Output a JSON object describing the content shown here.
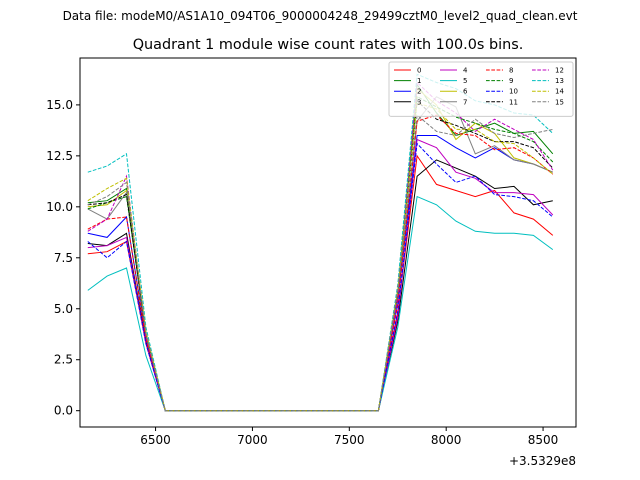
{
  "figure": {
    "suptitle": "Data file: modeM0/AS1A10_094T06_9000004248_29499cztM0_level2_quad_clean.evt",
    "title": "Quadrant 1 module wise count rates with 100.0s bins.",
    "x_offset_label": "+3.5329e8"
  },
  "chart_data": {
    "type": "line",
    "title": "Quadrant 1 module wise count rates with 100.0s bins.",
    "xlabel": "",
    "ylabel": "",
    "x_offset": "+3.5329e8",
    "xlim": [
      6110,
      8670
    ],
    "ylim": [
      -0.8,
      17.3
    ],
    "xticks": [
      6500,
      7000,
      7500,
      8000,
      8500
    ],
    "xtick_labels": [
      "6500",
      "7000",
      "7500",
      "8000",
      "8500"
    ],
    "yticks": [
      0.0,
      2.5,
      5.0,
      7.5,
      10.0,
      12.5,
      15.0
    ],
    "ytick_labels": [
      "0.0",
      "2.5",
      "5.0",
      "7.5",
      "10.0",
      "12.5",
      "15.0"
    ],
    "grid": false,
    "legend_placement": "top-right",
    "legend_columns": 4,
    "x": [
      6150,
      6250,
      6350,
      6450,
      6550,
      6650,
      6750,
      6850,
      6950,
      7050,
      7150,
      7250,
      7350,
      7450,
      7550,
      7650,
      7750,
      7850,
      7950,
      8050,
      8150,
      8250,
      8350,
      8450,
      8550
    ],
    "series": [
      {
        "name": "0",
        "color": "#ff0000",
        "dash": "solid",
        "values": [
          7.7,
          7.8,
          8.3,
          3.3,
          0,
          0,
          0,
          0,
          0,
          0,
          0,
          0,
          0,
          0,
          0,
          0,
          4.8,
          12.5,
          11.1,
          10.8,
          10.5,
          10.8,
          9.7,
          9.4,
          8.6
        ]
      },
      {
        "name": "1",
        "color": "#008000",
        "dash": "solid",
        "values": [
          10.2,
          10.3,
          10.9,
          3.7,
          0,
          0,
          0,
          0,
          0,
          0,
          0,
          0,
          0,
          0,
          0,
          0,
          5.9,
          16.0,
          14.6,
          13.5,
          13.8,
          14.1,
          13.6,
          13.7,
          12.6
        ]
      },
      {
        "name": "2",
        "color": "#0000ff",
        "dash": "solid",
        "values": [
          8.7,
          8.5,
          9.5,
          3.6,
          0,
          0,
          0,
          0,
          0,
          0,
          0,
          0,
          0,
          0,
          0,
          0,
          5.4,
          13.5,
          13.5,
          12.9,
          12.4,
          12.9,
          12.3,
          12.1,
          11.7
        ]
      },
      {
        "name": "3",
        "color": "#000000",
        "dash": "solid",
        "values": [
          8.2,
          8.1,
          8.7,
          3.4,
          0,
          0,
          0,
          0,
          0,
          0,
          0,
          0,
          0,
          0,
          0,
          0,
          4.4,
          11.5,
          12.3,
          11.9,
          11.5,
          10.9,
          11.0,
          10.1,
          10.3
        ]
      },
      {
        "name": "4",
        "color": "#bf00bf",
        "dash": "solid",
        "values": [
          8.0,
          8.1,
          8.5,
          3.3,
          0,
          0,
          0,
          0,
          0,
          0,
          0,
          0,
          0,
          0,
          0,
          0,
          4.6,
          13.3,
          12.9,
          11.7,
          11.4,
          10.7,
          10.7,
          10.6,
          9.6
        ]
      },
      {
        "name": "5",
        "color": "#00bfbf",
        "dash": "solid",
        "values": [
          5.9,
          6.6,
          7.0,
          2.7,
          0,
          0,
          0,
          0,
          0,
          0,
          0,
          0,
          0,
          0,
          0,
          0,
          4.1,
          10.5,
          10.1,
          9.3,
          8.8,
          8.7,
          8.7,
          8.6,
          7.9
        ]
      },
      {
        "name": "6",
        "color": "#bfbf00",
        "dash": "solid",
        "values": [
          10.0,
          10.1,
          10.8,
          3.7,
          0,
          0,
          0,
          0,
          0,
          0,
          0,
          0,
          0,
          0,
          0,
          0,
          5.9,
          15.8,
          15.0,
          13.3,
          14.1,
          13.6,
          12.4,
          12.1,
          11.7
        ]
      },
      {
        "name": "7",
        "color": "#808080",
        "dash": "solid",
        "values": [
          9.9,
          9.4,
          10.7,
          3.7,
          0,
          0,
          0,
          0,
          0,
          0,
          0,
          0,
          0,
          0,
          0,
          0,
          5.6,
          14.2,
          15.4,
          14.9,
          12.6,
          13.0,
          12.3,
          12.1,
          11.7
        ]
      },
      {
        "name": "8",
        "color": "#ff0000",
        "dash": "dashed",
        "values": [
          8.9,
          9.4,
          9.5,
          3.5,
          0,
          0,
          0,
          0,
          0,
          0,
          0,
          0,
          0,
          0,
          0,
          0,
          5.2,
          14.2,
          14.5,
          13.6,
          13.5,
          12.8,
          12.9,
          12.4,
          11.6
        ]
      },
      {
        "name": "9",
        "color": "#008000",
        "dash": "dashed",
        "values": [
          9.9,
          10.2,
          10.5,
          3.8,
          0,
          0,
          0,
          0,
          0,
          0,
          0,
          0,
          0,
          0,
          0,
          0,
          5.8,
          15.4,
          14.9,
          14.4,
          14.1,
          13.8,
          13.6,
          13.2,
          12.2
        ]
      },
      {
        "name": "10",
        "color": "#0000ff",
        "dash": "dashed",
        "values": [
          8.3,
          7.5,
          8.3,
          3.3,
          0,
          0,
          0,
          0,
          0,
          0,
          0,
          0,
          0,
          0,
          0,
          0,
          4.9,
          13.1,
          12.1,
          11.2,
          11.5,
          10.6,
          10.5,
          10.3,
          9.5
        ]
      },
      {
        "name": "11",
        "color": "#000000",
        "dash": "dashed",
        "values": [
          10.1,
          10.2,
          10.6,
          3.8,
          0,
          0,
          0,
          0,
          0,
          0,
          0,
          0,
          0,
          0,
          0,
          0,
          5.7,
          15.2,
          14.3,
          14.0,
          13.6,
          13.2,
          13.2,
          12.9,
          11.9
        ]
      },
      {
        "name": "12",
        "color": "#bf00bf",
        "dash": "dashed",
        "values": [
          8.8,
          9.4,
          11.5,
          3.7,
          0,
          0,
          0,
          0,
          0,
          0,
          0,
          0,
          0,
          0,
          0,
          0,
          5.6,
          16.1,
          15.2,
          14.6,
          13.7,
          14.3,
          13.8,
          13.3,
          11.8
        ]
      },
      {
        "name": "13",
        "color": "#00bfbf",
        "dash": "dashed",
        "values": [
          11.7,
          12.0,
          12.6,
          4.1,
          0,
          0,
          0,
          0,
          0,
          0,
          0,
          0,
          0,
          0,
          0,
          0,
          6.2,
          16.5,
          16.1,
          15.8,
          15.2,
          15.0,
          14.6,
          14.5,
          13.6
        ]
      },
      {
        "name": "14",
        "color": "#bfbf00",
        "dash": "dashed",
        "values": [
          10.3,
          10.9,
          11.4,
          3.9,
          0,
          0,
          0,
          0,
          0,
          0,
          0,
          0,
          0,
          0,
          0,
          0,
          5.9,
          15.1,
          14.8,
          13.8,
          13.8,
          13.2,
          13.1,
          12.4,
          11.6
        ]
      },
      {
        "name": "15",
        "color": "#808080",
        "dash": "dashed",
        "values": [
          10.1,
          10.5,
          11.2,
          3.8,
          0,
          0,
          0,
          0,
          0,
          0,
          0,
          0,
          0,
          0,
          0,
          0,
          6.0,
          14.5,
          13.7,
          13.5,
          14.3,
          13.6,
          13.4,
          13.6,
          13.8
        ]
      }
    ]
  }
}
